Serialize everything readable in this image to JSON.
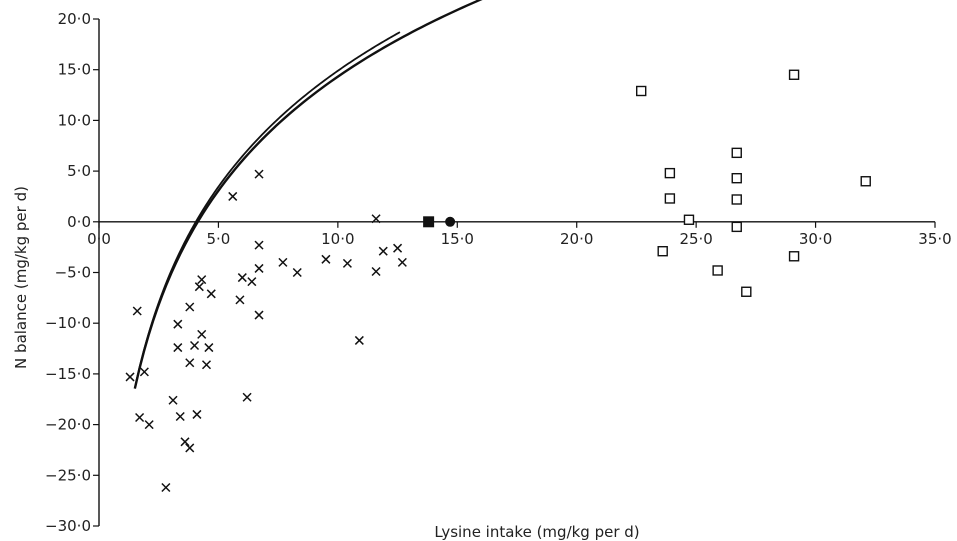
{
  "chart_data": {
    "type": "scatter",
    "title": "",
    "xlabel": "Lysine intake (mg/kg per d)",
    "ylabel": "N balance (mg/kg per d)",
    "xlim": [
      0,
      35
    ],
    "ylim": [
      -30,
      20
    ],
    "x_ticks": [
      "0·0",
      "5·0",
      "10·0",
      "15·0",
      "20·0",
      "25·0",
      "30·0",
      "35·0"
    ],
    "y_ticks": [
      "20·0",
      "15·0",
      "10·0",
      "5·0",
      "0·0",
      "−5·0",
      "−10·0",
      "−15·0",
      "−20·0",
      "−25·0",
      "−30·0"
    ],
    "x_axis_at_y": 0,
    "series": [
      {
        "marker": "x",
        "points": [
          [
            1.3,
            -15.3
          ],
          [
            1.6,
            -8.8
          ],
          [
            1.7,
            -19.3
          ],
          [
            1.9,
            -14.8
          ],
          [
            2.1,
            -20.0
          ],
          [
            2.8,
            -26.2
          ],
          [
            3.1,
            -17.6
          ],
          [
            3.3,
            -10.1
          ],
          [
            3.3,
            -12.4
          ],
          [
            3.4,
            -19.2
          ],
          [
            3.6,
            -21.7
          ],
          [
            3.8,
            -22.3
          ],
          [
            3.8,
            -13.9
          ],
          [
            3.8,
            -8.4
          ],
          [
            4.0,
            -12.2
          ],
          [
            4.1,
            -19.0
          ],
          [
            4.2,
            -6.4
          ],
          [
            4.3,
            -5.7
          ],
          [
            4.3,
            -11.1
          ],
          [
            4.5,
            -14.1
          ],
          [
            4.6,
            -12.4
          ],
          [
            4.7,
            -7.1
          ],
          [
            5.6,
            2.5
          ],
          [
            5.9,
            -7.7
          ],
          [
            6.0,
            -5.5
          ],
          [
            6.2,
            -17.3
          ],
          [
            6.4,
            -5.9
          ],
          [
            6.7,
            -9.2
          ],
          [
            6.7,
            -4.6
          ],
          [
            6.7,
            -2.3
          ],
          [
            6.7,
            4.7
          ],
          [
            7.7,
            -4.0
          ],
          [
            8.3,
            -5.0
          ],
          [
            9.5,
            -3.7
          ],
          [
            10.4,
            -4.1
          ],
          [
            10.9,
            -11.7
          ],
          [
            11.6,
            0.3
          ],
          [
            11.6,
            -4.9
          ],
          [
            11.9,
            -2.9
          ],
          [
            12.5,
            -2.6
          ],
          [
            12.7,
            -4.0
          ]
        ]
      },
      {
        "marker": "square",
        "points": [
          [
            22.7,
            12.9
          ],
          [
            23.6,
            -2.9
          ],
          [
            23.9,
            4.8
          ],
          [
            23.9,
            2.3
          ],
          [
            24.7,
            0.2
          ],
          [
            25.9,
            -4.8
          ],
          [
            26.7,
            6.8
          ],
          [
            26.7,
            4.3
          ],
          [
            26.7,
            2.2
          ],
          [
            26.7,
            -0.5
          ],
          [
            27.1,
            -6.9
          ],
          [
            29.1,
            14.5
          ],
          [
            29.1,
            -3.4
          ],
          [
            32.1,
            4.0
          ]
        ]
      },
      {
        "marker": "filled-square",
        "points": [
          [
            13.8,
            0.0
          ]
        ]
      },
      {
        "marker": "filled-circle",
        "points": [
          [
            14.7,
            0.0
          ]
        ]
      }
    ],
    "curves": [
      {
        "a": 16.22,
        "b": -23.03,
        "xrange": [
          1.5,
          32.0
        ]
      },
      {
        "a": 16.5,
        "b": -23.1,
        "xrange": [
          1.5,
          12.6
        ]
      }
    ]
  }
}
